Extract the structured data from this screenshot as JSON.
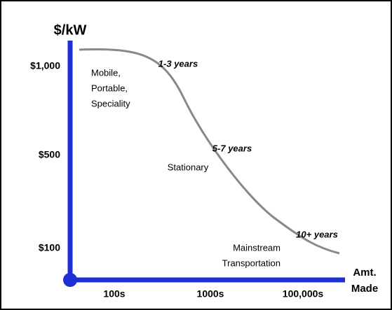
{
  "axes": {
    "y_title": "$/kW",
    "y_labels": [
      "$1,000",
      "$500",
      "$100"
    ],
    "x_labels": [
      "100s",
      "1000s",
      "100,000s"
    ],
    "x_title": [
      "Amt.",
      "Made"
    ]
  },
  "regions": [
    [
      "Mobile,",
      "Portable,",
      "Speciality"
    ],
    [
      "Stationary"
    ],
    [
      "Mainstream",
      "Transportation"
    ]
  ],
  "stages": [
    "1-3 years",
    "5-7 years",
    "10+ years"
  ]
}
